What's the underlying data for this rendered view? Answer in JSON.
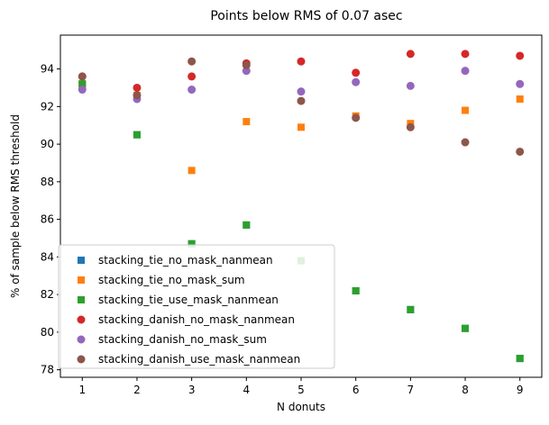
{
  "chart_data": {
    "type": "scatter",
    "title": "Points below RMS of 0.07 asec",
    "xlabel": "N donuts",
    "ylabel": "% of sample below RMS threshold",
    "xlim": [
      0.6,
      9.4
    ],
    "ylim": [
      77.6,
      95.8
    ],
    "xticks": [
      1,
      2,
      3,
      4,
      5,
      6,
      7,
      8,
      9
    ],
    "yticks": [
      78,
      80,
      82,
      84,
      86,
      88,
      90,
      92,
      94
    ],
    "grid": false,
    "legend_position": "lower-left",
    "series": [
      {
        "name": "stacking_tie_no_mask_nanmean",
        "marker": "square",
        "color": "#1f77b4",
        "x": [
          1,
          2,
          3,
          4,
          5,
          6,
          7,
          8,
          9
        ],
        "y": [
          93.2,
          90.5,
          84.7,
          85.7,
          83.8,
          82.2,
          81.2,
          80.2,
          78.6
        ]
      },
      {
        "name": "stacking_tie_no_mask_sum",
        "marker": "square",
        "color": "#ff7f0e",
        "x": [
          1,
          2,
          3,
          4,
          5,
          6,
          7,
          8,
          9
        ],
        "y": [
          93.2,
          92.6,
          88.6,
          91.2,
          90.9,
          91.5,
          91.1,
          91.8,
          92.4
        ]
      },
      {
        "name": "stacking_tie_use_mask_nanmean",
        "marker": "square",
        "color": "#2ca02c",
        "x": [
          1,
          2,
          3,
          4,
          5,
          6,
          7,
          8,
          9
        ],
        "y": [
          93.2,
          90.5,
          84.7,
          85.7,
          83.8,
          82.2,
          81.2,
          80.2,
          78.6
        ]
      },
      {
        "name": "stacking_danish_no_mask_nanmean",
        "marker": "circle",
        "color": "#d62728",
        "x": [
          1,
          2,
          3,
          4,
          5,
          6,
          7,
          8,
          9
        ],
        "y": [
          93.6,
          93.0,
          93.6,
          94.3,
          94.4,
          93.8,
          94.8,
          94.8,
          94.7
        ]
      },
      {
        "name": "stacking_danish_no_mask_sum",
        "marker": "circle",
        "color": "#9467bd",
        "x": [
          1,
          2,
          3,
          4,
          5,
          6,
          7,
          8,
          9
        ],
        "y": [
          92.9,
          92.4,
          92.9,
          93.9,
          92.8,
          93.3,
          93.1,
          93.9,
          93.2
        ]
      },
      {
        "name": "stacking_danish_use_mask_nanmean",
        "marker": "circle",
        "color": "#8c564b",
        "x": [
          1,
          2,
          3,
          4,
          5,
          6,
          7,
          8,
          9
        ],
        "y": [
          93.6,
          92.6,
          94.4,
          94.2,
          92.3,
          91.4,
          90.9,
          90.1,
          89.6
        ]
      }
    ]
  }
}
